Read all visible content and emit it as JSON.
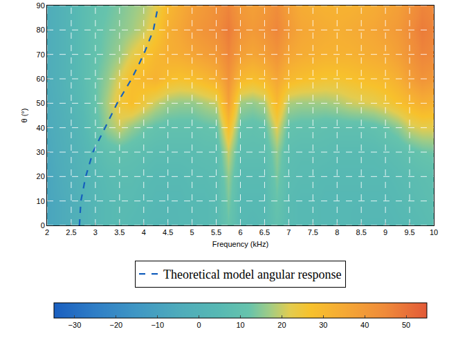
{
  "chart_data": {
    "type": "heatmap",
    "x_label": "Frequency (kHz)",
    "y_label": "θ (°)",
    "xlim": [
      2,
      10
    ],
    "ylim": [
      0,
      90
    ],
    "xticks": [
      2,
      2.5,
      3,
      3.5,
      4,
      4.5,
      5,
      5.5,
      6,
      6.5,
      7,
      7.5,
      8,
      8.5,
      9,
      9.5,
      10
    ],
    "yticks": [
      0,
      10,
      20,
      30,
      40,
      50,
      60,
      70,
      80,
      90
    ],
    "grid": true,
    "legend": "bottom",
    "x": [
      2,
      2.25,
      2.5,
      2.75,
      3,
      3.25,
      3.5,
      3.75,
      4,
      4.25,
      4.5,
      4.75,
      5,
      5.25,
      5.5,
      5.75,
      6,
      6.25,
      6.5,
      6.75,
      7,
      7.25,
      7.5,
      7.75,
      8,
      8.25,
      8.5,
      8.75,
      9,
      9.25,
      9.5,
      9.75,
      10
    ],
    "y": [
      0,
      10,
      20,
      30,
      40,
      50,
      60,
      70,
      80,
      90
    ],
    "z": [
      [
        -8,
        -6,
        -3,
        0,
        3,
        5,
        6,
        5,
        4,
        3,
        3,
        4,
        4,
        5,
        6,
        12,
        5,
        4,
        5,
        10,
        6,
        5,
        5,
        4,
        4,
        4,
        3,
        3,
        3,
        4,
        5,
        6,
        7
      ],
      [
        -8,
        -6,
        -3,
        0,
        3,
        5,
        6,
        6,
        5,
        4,
        4,
        4,
        5,
        5,
        6,
        14,
        5,
        5,
        5,
        12,
        6,
        5,
        5,
        4,
        4,
        4,
        4,
        4,
        4,
        5,
        6,
        7,
        8
      ],
      [
        -8,
        -5,
        -2,
        1,
        4,
        6,
        7,
        7,
        6,
        5,
        5,
        5,
        6,
        6,
        7,
        16,
        6,
        6,
        6,
        14,
        7,
        6,
        6,
        5,
        5,
        5,
        5,
        5,
        5,
        6,
        7,
        8,
        9
      ],
      [
        -7,
        -4,
        -1,
        2,
        6,
        9,
        10,
        9,
        8,
        7,
        7,
        7,
        7,
        8,
        8,
        20,
        8,
        8,
        8,
        16,
        8,
        7,
        7,
        7,
        6,
        6,
        6,
        6,
        7,
        8,
        10,
        12,
        13
      ],
      [
        -6,
        -3,
        0,
        4,
        10,
        16,
        20,
        16,
        13,
        11,
        10,
        10,
        10,
        11,
        12,
        28,
        11,
        10,
        11,
        22,
        11,
        10,
        10,
        9,
        9,
        9,
        9,
        10,
        12,
        15,
        20,
        22,
        22
      ],
      [
        -5,
        -2,
        2,
        6,
        12,
        18,
        25,
        28,
        24,
        20,
        17,
        16,
        16,
        18,
        20,
        38,
        17,
        16,
        18,
        30,
        18,
        17,
        17,
        17,
        18,
        20,
        21,
        22,
        24,
        27,
        30,
        33,
        32
      ],
      [
        -4,
        -1,
        3,
        7,
        12,
        16,
        22,
        28,
        30,
        32,
        28,
        27,
        28,
        30,
        33,
        42,
        30,
        28,
        30,
        36,
        30,
        28,
        27,
        26,
        26,
        27,
        28,
        29,
        30,
        33,
        38,
        42,
        40
      ],
      [
        -4,
        -1,
        3,
        7,
        11,
        14,
        17,
        22,
        26,
        30,
        33,
        34,
        36,
        38,
        40,
        46,
        38,
        36,
        38,
        42,
        36,
        34,
        33,
        32,
        32,
        32,
        33,
        34,
        35,
        38,
        42,
        46,
        45
      ],
      [
        -4,
        -1,
        3,
        7,
        11,
        13,
        15,
        17,
        20,
        25,
        33,
        36,
        40,
        42,
        44,
        48,
        42,
        40,
        42,
        46,
        40,
        36,
        35,
        34,
        33,
        34,
        35,
        36,
        38,
        40,
        44,
        48,
        46
      ],
      [
        -4,
        -1,
        3,
        7,
        10,
        12,
        14,
        16,
        18,
        22,
        30,
        34,
        38,
        40,
        43,
        46,
        40,
        38,
        40,
        44,
        38,
        34,
        33,
        32,
        32,
        32,
        33,
        34,
        36,
        38,
        42,
        46,
        45
      ]
    ],
    "colorbar_range": [
      -35,
      55
    ],
    "colorbar_ticks": [
      {
        "value": -30,
        "label": "−30"
      },
      {
        "value": -20,
        "label": "−20"
      },
      {
        "value": -10,
        "label": "−10"
      },
      0,
      10,
      20,
      30,
      40,
      50
    ],
    "series": [
      {
        "name": "Theoretical model angular response",
        "type": "line",
        "line_style": "dashed",
        "color": "#1560bd",
        "x": [
          2.67,
          2.7,
          2.8,
          2.95,
          3.2,
          3.45,
          3.75,
          4.0,
          4.2,
          4.3
        ],
        "y": [
          0,
          10,
          20,
          30,
          40,
          50,
          60,
          70,
          80,
          90
        ]
      }
    ]
  }
}
